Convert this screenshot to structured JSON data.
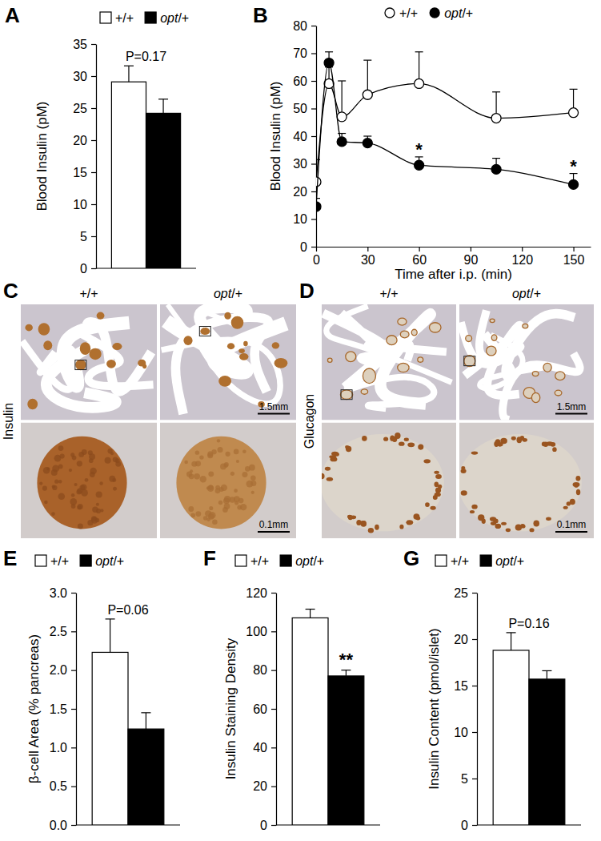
{
  "chart_data": [
    {
      "type": "bar",
      "title": "A",
      "y_label": "Blood Insulin (pM)",
      "ylim": [
        0,
        35
      ],
      "yticks": [
        0,
        5,
        10,
        15,
        20,
        25,
        30,
        35
      ],
      "tick_labels": "y",
      "legend": "top",
      "series": [
        {
          "name": "+/+",
          "color": "#ffffff",
          "values": [
            29.1
          ],
          "errors": [
            2.5
          ]
        },
        {
          "name": "opt/+",
          "color": "#000000",
          "values": [
            24.2
          ],
          "errors": [
            2.2
          ]
        }
      ],
      "annotations": [
        {
          "text": "P=0.17"
        }
      ]
    },
    {
      "type": "line",
      "title": "B",
      "x_label": "Time after i.p. (min)",
      "y_label": "Blood Insulin (pM)",
      "x": [
        0,
        7.5,
        15,
        30,
        60,
        105,
        150
      ],
      "xlim": [
        0,
        160
      ],
      "xticks": [
        0,
        30,
        60,
        90,
        120,
        150
      ],
      "ylim": [
        0,
        80
      ],
      "yticks": [
        0,
        10,
        20,
        30,
        40,
        50,
        60,
        70,
        80
      ],
      "legend": "top",
      "series": [
        {
          "name": "+/+",
          "color": "#ffffff",
          "marker": "circle",
          "line_style": "solid",
          "values": [
            23.5,
            59,
            47,
            55,
            59,
            46.5,
            48.5
          ],
          "errors": [
            8,
            6,
            13,
            12.5,
            11.5,
            9.5,
            8.5
          ]
        },
        {
          "name": "opt/+",
          "color": "#000000",
          "marker": "circle",
          "line_style": "solid",
          "values": [
            14.5,
            66.5,
            38,
            37.5,
            29.5,
            28,
            22.5
          ],
          "errors": [
            3,
            4,
            3,
            2.5,
            3,
            4,
            4
          ]
        }
      ],
      "annotations": [
        {
          "text": "*",
          "x": 60
        },
        {
          "text": "*",
          "x": 150
        }
      ]
    },
    {
      "type": "bar",
      "title": "E",
      "y_label": "β-cell Area (% pancreas)",
      "ylim": [
        0,
        3
      ],
      "yticks": [
        {
          "value": 0,
          "label": "0.0"
        },
        {
          "value": 0.5,
          "label": "0.5"
        },
        {
          "value": 1,
          "label": "1.0"
        },
        {
          "value": 1.5,
          "label": "1.5"
        },
        {
          "value": 2,
          "label": "2.0"
        },
        {
          "value": 2.5,
          "label": "2.5"
        },
        {
          "value": 3,
          "label": "3.0"
        }
      ],
      "tick_labels": "y",
      "legend": "top",
      "series": [
        {
          "name": "+/+",
          "color": "#ffffff",
          "values": [
            2.23
          ],
          "errors": [
            0.43
          ]
        },
        {
          "name": "opt/+",
          "color": "#000000",
          "values": [
            1.24
          ],
          "errors": [
            0.21
          ]
        }
      ],
      "annotations": [
        {
          "text": "P=0.06"
        }
      ]
    },
    {
      "type": "bar",
      "title": "F",
      "y_label": "Insulin Staining Density",
      "ylim": [
        0,
        120
      ],
      "yticks": [
        0,
        20,
        40,
        60,
        80,
        100,
        120
      ],
      "tick_labels": "y",
      "legend": "top",
      "series": [
        {
          "name": "+/+",
          "color": "#ffffff",
          "values": [
            107
          ],
          "errors": [
            4.5
          ]
        },
        {
          "name": "opt/+",
          "color": "#000000",
          "values": [
            77
          ],
          "errors": [
            3
          ]
        }
      ],
      "annotations": [
        {
          "text": "**",
          "series": 1
        }
      ]
    },
    {
      "type": "bar",
      "title": "G",
      "y_label": "Insulin Content (pmol/islet)",
      "ylim": [
        0,
        25
      ],
      "yticks": [
        0,
        5,
        10,
        15,
        20,
        25
      ],
      "tick_labels": "y",
      "legend": "top",
      "series": [
        {
          "name": "+/+",
          "color": "#ffffff",
          "values": [
            18.8
          ],
          "errors": [
            1.9
          ]
        },
        {
          "name": "opt/+",
          "color": "#000000",
          "values": [
            15.7
          ],
          "errors": [
            0.9
          ]
        }
      ],
      "annotations": [
        {
          "text": "P=0.16"
        }
      ]
    }
  ],
  "images": [
    {
      "panel": "C",
      "stain": "Insulin",
      "columns": [
        "+/+",
        "opt/+"
      ],
      "scale_bars": [
        "1.5mm",
        "0.1mm"
      ]
    },
    {
      "panel": "D",
      "stain": "Glucagon",
      "columns": [
        "+/+",
        "opt/+"
      ],
      "scale_bars": [
        "1.5mm",
        "0.1mm"
      ]
    }
  ]
}
